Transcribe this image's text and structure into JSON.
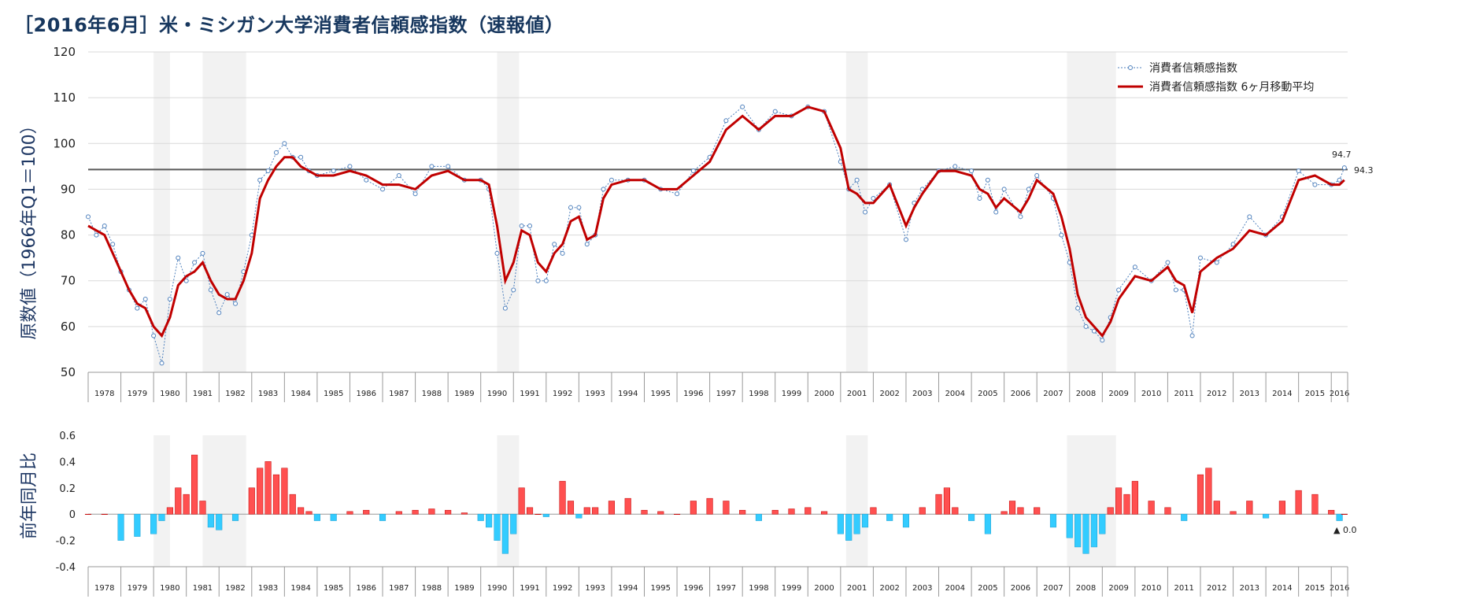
{
  "title": "［2016年6月］米・ミシガン大学消費者信頼感指数（速報値）",
  "colors": {
    "index_line": "#4f81bd",
    "ma_line": "#c00000",
    "bar_positive": "#ff5050",
    "bar_negative": "#33ccff",
    "recession_band": "#f2f2f2",
    "title": "#17375e"
  },
  "chart_data": [
    {
      "type": "line",
      "title": "",
      "ylabel": "原数値（1966年Q1＝100）",
      "ylim": [
        50,
        120
      ],
      "yticks": [
        50,
        60,
        70,
        80,
        90,
        100,
        110,
        120
      ],
      "xlim": [
        1978.0,
        2016.5
      ],
      "year_labels": [
        "1978",
        "1979",
        "1980",
        "1981",
        "1982",
        "1983",
        "1984",
        "1985",
        "1986",
        "1987",
        "1988",
        "1989",
        "1990",
        "1991",
        "1992",
        "1993",
        "1994",
        "1995",
        "1996",
        "1997",
        "1998",
        "1999",
        "2000",
        "2001",
        "2002",
        "2003",
        "2004",
        "2005",
        "2006",
        "2007",
        "2008",
        "2009",
        "2010",
        "2011",
        "2012",
        "2013",
        "2014",
        "2015",
        "2016"
      ],
      "recessions": [
        [
          1980.0,
          1980.5
        ],
        [
          1981.5,
          1982.83
        ],
        [
          1990.5,
          1991.17
        ],
        [
          2001.17,
          2001.83
        ],
        [
          2007.92,
          2009.42
        ]
      ],
      "reference_line": 94.3,
      "legend": [
        "消費者信頼感指数",
        "消費者信頼感指数 6ヶ月移動平均"
      ],
      "legend_position": "top-right",
      "end_labels": [
        "94.7",
        "94.3"
      ],
      "series": [
        {
          "name": "消費者信頼感指数",
          "style": "dotted line with markers",
          "x": [
            1978.0,
            1978.25,
            1978.5,
            1978.75,
            1979.0,
            1979.25,
            1979.5,
            1979.75,
            1980.0,
            1980.25,
            1980.5,
            1980.75,
            1981.0,
            1981.25,
            1981.5,
            1981.75,
            1982.0,
            1982.25,
            1982.5,
            1982.75,
            1983.0,
            1983.25,
            1983.5,
            1983.75,
            1984.0,
            1984.25,
            1984.5,
            1984.75,
            1985.0,
            1985.5,
            1986.0,
            1986.5,
            1987.0,
            1987.5,
            1988.0,
            1988.5,
            1989.0,
            1989.5,
            1990.0,
            1990.25,
            1990.5,
            1990.75,
            1991.0,
            1991.25,
            1991.5,
            1991.75,
            1992.0,
            1992.25,
            1992.5,
            1992.75,
            1993.0,
            1993.25,
            1993.5,
            1993.75,
            1994.0,
            1994.5,
            1995.0,
            1995.5,
            1996.0,
            1996.5,
            1997.0,
            1997.5,
            1998.0,
            1998.5,
            1999.0,
            1999.5,
            2000.0,
            2000.5,
            2001.0,
            2001.25,
            2001.5,
            2001.75,
            2002.0,
            2002.5,
            2003.0,
            2003.25,
            2003.5,
            2004.0,
            2004.5,
            2005.0,
            2005.25,
            2005.5,
            2005.75,
            2006.0,
            2006.5,
            2006.75,
            2007.0,
            2007.5,
            2007.75,
            2008.0,
            2008.25,
            2008.5,
            2008.75,
            2009.0,
            2009.25,
            2009.5,
            2010.0,
            2010.5,
            2011.0,
            2011.25,
            2011.5,
            2011.75,
            2012.0,
            2012.5,
            2013.0,
            2013.5,
            2014.0,
            2014.5,
            2015.0,
            2015.5,
            2016.0,
            2016.25,
            2016.4
          ],
          "values": [
            84.0,
            80.0,
            82.0,
            78.0,
            72.0,
            68.0,
            64.0,
            66.0,
            58.0,
            52.0,
            66.0,
            75.0,
            70.0,
            74.0,
            76.0,
            68.0,
            63.0,
            67.0,
            65.0,
            72.0,
            80.0,
            92.0,
            94.0,
            98.0,
            100.0,
            97.0,
            97.0,
            94.0,
            93.0,
            94.0,
            95.0,
            92.0,
            90.0,
            93.0,
            89.0,
            95.0,
            95.0,
            92.0,
            92.0,
            90.0,
            76.0,
            64.0,
            68.0,
            82.0,
            82.0,
            70.0,
            70.0,
            78.0,
            76.0,
            86.0,
            86.0,
            78.0,
            80.0,
            90.0,
            92.0,
            92.0,
            92.0,
            90.0,
            89.0,
            94.0,
            97.0,
            105.0,
            108.0,
            103.0,
            107.0,
            106.0,
            108.0,
            107.0,
            96.0,
            90.0,
            92.0,
            85.0,
            88.0,
            91.0,
            79.0,
            87.0,
            90.0,
            94.0,
            95.0,
            94.0,
            88.0,
            92.0,
            85.0,
            90.0,
            84.0,
            90.0,
            93.0,
            88.0,
            80.0,
            74.0,
            64.0,
            60.0,
            59.0,
            57.0,
            62.0,
            68.0,
            73.0,
            70.0,
            74.0,
            68.0,
            68.0,
            58.0,
            75.0,
            74.0,
            78.0,
            84.0,
            80.0,
            84.0,
            94.0,
            91.0,
            91.0,
            92.0,
            94.7
          ]
        },
        {
          "name": "消費者信頼感指数 6ヶ月移動平均",
          "style": "solid thick line",
          "x": [
            1978.0,
            1978.25,
            1978.5,
            1978.75,
            1979.0,
            1979.25,
            1979.5,
            1979.75,
            1980.0,
            1980.25,
            1980.5,
            1980.75,
            1981.0,
            1981.25,
            1981.5,
            1981.75,
            1982.0,
            1982.25,
            1982.5,
            1982.75,
            1983.0,
            1983.25,
            1983.5,
            1983.75,
            1984.0,
            1984.25,
            1984.5,
            1984.75,
            1985.0,
            1985.5,
            1986.0,
            1986.5,
            1987.0,
            1987.5,
            1988.0,
            1988.5,
            1989.0,
            1989.5,
            1990.0,
            1990.25,
            1990.5,
            1990.75,
            1991.0,
            1991.25,
            1991.5,
            1991.75,
            1992.0,
            1992.25,
            1992.5,
            1992.75,
            1993.0,
            1993.25,
            1993.5,
            1993.75,
            1994.0,
            1994.5,
            1995.0,
            1995.5,
            1996.0,
            1996.5,
            1997.0,
            1997.5,
            1998.0,
            1998.5,
            1999.0,
            1999.5,
            2000.0,
            2000.5,
            2001.0,
            2001.25,
            2001.5,
            2001.75,
            2002.0,
            2002.5,
            2003.0,
            2003.25,
            2003.5,
            2004.0,
            2004.5,
            2005.0,
            2005.25,
            2005.5,
            2005.75,
            2006.0,
            2006.5,
            2006.75,
            2007.0,
            2007.5,
            2007.75,
            2008.0,
            2008.25,
            2008.5,
            2008.75,
            2009.0,
            2009.25,
            2009.5,
            2010.0,
            2010.5,
            2011.0,
            2011.25,
            2011.5,
            2011.75,
            2012.0,
            2012.5,
            2013.0,
            2013.5,
            2014.0,
            2014.5,
            2015.0,
            2015.5,
            2016.0,
            2016.25,
            2016.4
          ],
          "values": [
            82.0,
            81.0,
            80.0,
            76.0,
            72.0,
            68.0,
            65.0,
            64.0,
            60.0,
            58.0,
            62.0,
            69.0,
            71.0,
            72.0,
            74.0,
            70.0,
            67.0,
            66.0,
            66.0,
            70.0,
            76.0,
            88.0,
            92.0,
            95.0,
            97.0,
            97.0,
            95.0,
            94.0,
            93.0,
            93.0,
            94.0,
            93.0,
            91.0,
            91.0,
            90.0,
            93.0,
            94.0,
            92.0,
            92.0,
            91.0,
            82.0,
            70.0,
            74.0,
            81.0,
            80.0,
            74.0,
            72.0,
            76.0,
            78.0,
            83.0,
            84.0,
            79.0,
            80.0,
            88.0,
            91.0,
            92.0,
            92.0,
            90.0,
            90.0,
            93.0,
            96.0,
            103.0,
            106.0,
            103.0,
            106.0,
            106.0,
            108.0,
            107.0,
            99.0,
            90.0,
            89.0,
            87.0,
            87.0,
            91.0,
            82.0,
            86.0,
            89.0,
            94.0,
            94.0,
            93.0,
            90.0,
            89.0,
            86.0,
            88.0,
            85.0,
            88.0,
            92.0,
            89.0,
            84.0,
            77.0,
            67.0,
            62.0,
            60.0,
            58.0,
            61.0,
            66.0,
            71.0,
            70.0,
            73.0,
            70.0,
            69.0,
            63.0,
            72.0,
            75.0,
            77.0,
            81.0,
            80.0,
            83.0,
            92.0,
            93.0,
            91.0,
            91.0,
            92.0
          ]
        }
      ]
    },
    {
      "type": "bar",
      "title": "",
      "ylabel": "前年同月比",
      "ylim": [
        -0.4,
        0.6
      ],
      "yticks": [
        "-0.4",
        "-0.2",
        "0",
        "0.2",
        "0.4",
        "0.6"
      ],
      "xlim": [
        1978.0,
        2016.5
      ],
      "year_labels": [
        "1978",
        "1979",
        "1980",
        "1981",
        "1982",
        "1983",
        "1984",
        "1985",
        "1986",
        "1987",
        "1988",
        "1989",
        "1990",
        "1991",
        "1992",
        "1993",
        "1994",
        "1995",
        "1996",
        "1997",
        "1998",
        "1999",
        "2000",
        "2001",
        "2002",
        "2003",
        "2004",
        "2005",
        "2006",
        "2007",
        "2008",
        "2009",
        "2010",
        "2011",
        "2012",
        "2013",
        "2014",
        "2015",
        "2016"
      ],
      "recessions": [
        [
          1980.0,
          1980.5
        ],
        [
          1981.5,
          1982.83
        ],
        [
          1990.5,
          1991.17
        ],
        [
          2001.17,
          2001.83
        ],
        [
          2007.92,
          2009.42
        ]
      ],
      "end_label": "▲ 0.0",
      "x": [
        1978.0,
        1978.5,
        1979.0,
        1979.5,
        1980.0,
        1980.25,
        1980.5,
        1980.75,
        1981.0,
        1981.25,
        1981.5,
        1981.75,
        1982.0,
        1982.5,
        1983.0,
        1983.25,
        1983.5,
        1983.75,
        1984.0,
        1984.25,
        1984.5,
        1984.75,
        1985.0,
        1985.5,
        1986.0,
        1986.5,
        1987.0,
        1987.5,
        1988.0,
        1988.5,
        1989.0,
        1989.5,
        1990.0,
        1990.25,
        1990.5,
        1990.75,
        1991.0,
        1991.25,
        1991.5,
        1991.75,
        1992.0,
        1992.5,
        1992.75,
        1993.0,
        1993.25,
        1993.5,
        1994.0,
        1994.5,
        1995.0,
        1995.5,
        1996.0,
        1996.5,
        1997.0,
        1997.5,
        1998.0,
        1998.5,
        1999.0,
        1999.5,
        2000.0,
        2000.5,
        2001.0,
        2001.25,
        2001.5,
        2001.75,
        2002.0,
        2002.5,
        2003.0,
        2003.5,
        2004.0,
        2004.25,
        2004.5,
        2005.0,
        2005.5,
        2006.0,
        2006.25,
        2006.5,
        2007.0,
        2007.5,
        2008.0,
        2008.25,
        2008.5,
        2008.75,
        2009.0,
        2009.25,
        2009.5,
        2009.75,
        2010.0,
        2010.5,
        2011.0,
        2011.5,
        2012.0,
        2012.25,
        2012.5,
        2013.0,
        2013.5,
        2014.0,
        2014.5,
        2015.0,
        2015.5,
        2016.0,
        2016.25,
        2016.4
      ],
      "values": [
        0,
        0,
        -0.2,
        -0.17,
        -0.15,
        -0.05,
        0.05,
        0.2,
        0.15,
        0.45,
        0.1,
        -0.1,
        -0.12,
        -0.05,
        0.2,
        0.35,
        0.4,
        0.3,
        0.35,
        0.15,
        0.05,
        0.02,
        -0.05,
        -0.05,
        0.02,
        0.03,
        -0.05,
        0.02,
        0.03,
        0.04,
        0.03,
        0.01,
        -0.05,
        -0.1,
        -0.2,
        -0.3,
        -0.15,
        0.2,
        0.05,
        0,
        -0.02,
        0.25,
        0.1,
        -0.03,
        0.05,
        0.05,
        0.1,
        0.12,
        0.03,
        0.02,
        0,
        0.1,
        0.12,
        0.1,
        0.03,
        -0.05,
        0.03,
        0.04,
        0.05,
        0.02,
        -0.15,
        -0.2,
        -0.15,
        -0.1,
        0.05,
        -0.05,
        -0.1,
        0.05,
        0.15,
        0.2,
        0.05,
        -0.05,
        -0.15,
        0.02,
        0.1,
        0.05,
        0.05,
        -0.1,
        -0.18,
        -0.25,
        -0.3,
        -0.25,
        -0.15,
        0.05,
        0.2,
        0.15,
        0.25,
        0.1,
        0.05,
        -0.05,
        0.3,
        0.35,
        0.1,
        0.02,
        0.1,
        -0.03,
        0.1,
        0.18,
        0.15,
        0.03,
        -0.05,
        0.0
      ]
    }
  ]
}
